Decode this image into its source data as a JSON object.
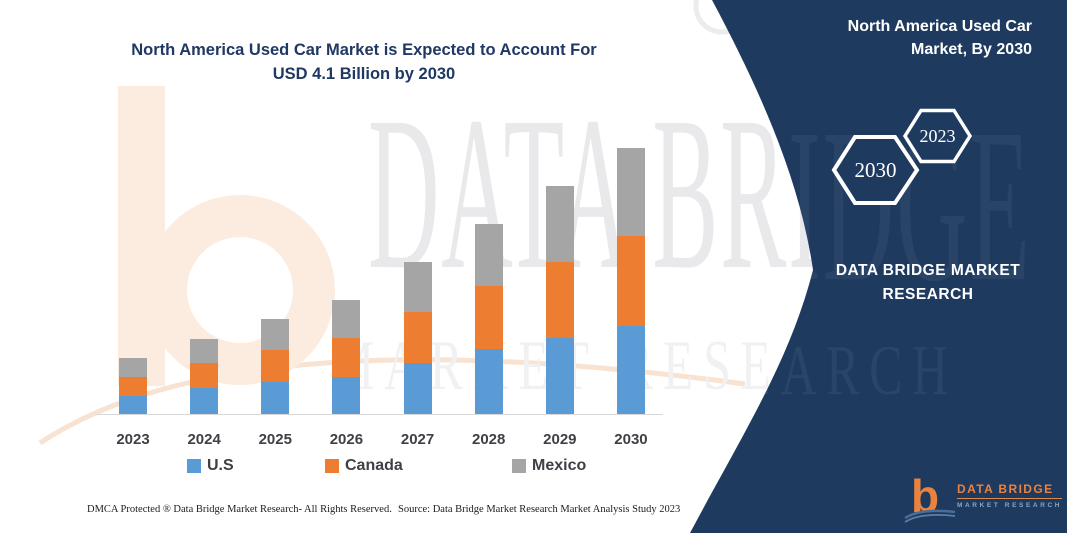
{
  "heading": {
    "line1": "North America Used Car Market is Expected to Account For",
    "line2": "USD 4.1 Billion by 2030"
  },
  "panel": {
    "header": "North America Used Car Market, By 2030",
    "hexagon_large": "2030",
    "hexagon_small": "2023",
    "brand": "DATA BRIDGE MARKET RESEARCH",
    "logo": {
      "glyph": "b",
      "name": "DATA BRIDGE",
      "tagline": "MARKET RESEARCH"
    }
  },
  "watermark": {
    "line1": "DATA BRIDGE",
    "line2": "MARKET RESEARCH"
  },
  "footer": {
    "dmca": "DMCA Protected ® Data Bridge Market Research-  All Rights Reserved.",
    "source": "Source: Data Bridge Market Research  Market Analysis Study 2023"
  },
  "colors": {
    "us": "#5b9bd5",
    "canada": "#ed7d31",
    "mexico": "#a5a5a5",
    "panel": "#1e3a5f",
    "title": "#1f3864",
    "axis": "#d8d8d8",
    "label": "#3f3f46",
    "logo_orange": "#e8823e"
  },
  "chart_data": {
    "type": "bar",
    "stacked": true,
    "title": "North America Used Car Market is Expected to Account For USD 4.1 Billion by 2030",
    "unit": "USD Billion",
    "categories": [
      "2023",
      "2024",
      "2025",
      "2026",
      "2027",
      "2028",
      "2029",
      "2030"
    ],
    "series": [
      {
        "name": "U.S",
        "color_key": "us",
        "values": [
          0.28,
          0.4,
          0.49,
          0.57,
          0.79,
          1.0,
          1.17,
          1.36
        ]
      },
      {
        "name": "Canada",
        "color_key": "canada",
        "values": [
          0.29,
          0.39,
          0.49,
          0.6,
          0.79,
          0.97,
          1.17,
          1.39
        ]
      },
      {
        "name": "Mexico",
        "color_key": "mexico",
        "values": [
          0.29,
          0.37,
          0.48,
          0.59,
          0.77,
          0.96,
          1.17,
          1.36
        ]
      }
    ],
    "totals": [
      0.86,
      1.16,
      1.46,
      1.76,
      2.35,
      2.93,
      3.51,
      4.11
    ],
    "xlabel": "",
    "ylabel": "",
    "ylim": [
      0,
      4.5
    ],
    "grid": false,
    "legend_position": "bottom"
  }
}
